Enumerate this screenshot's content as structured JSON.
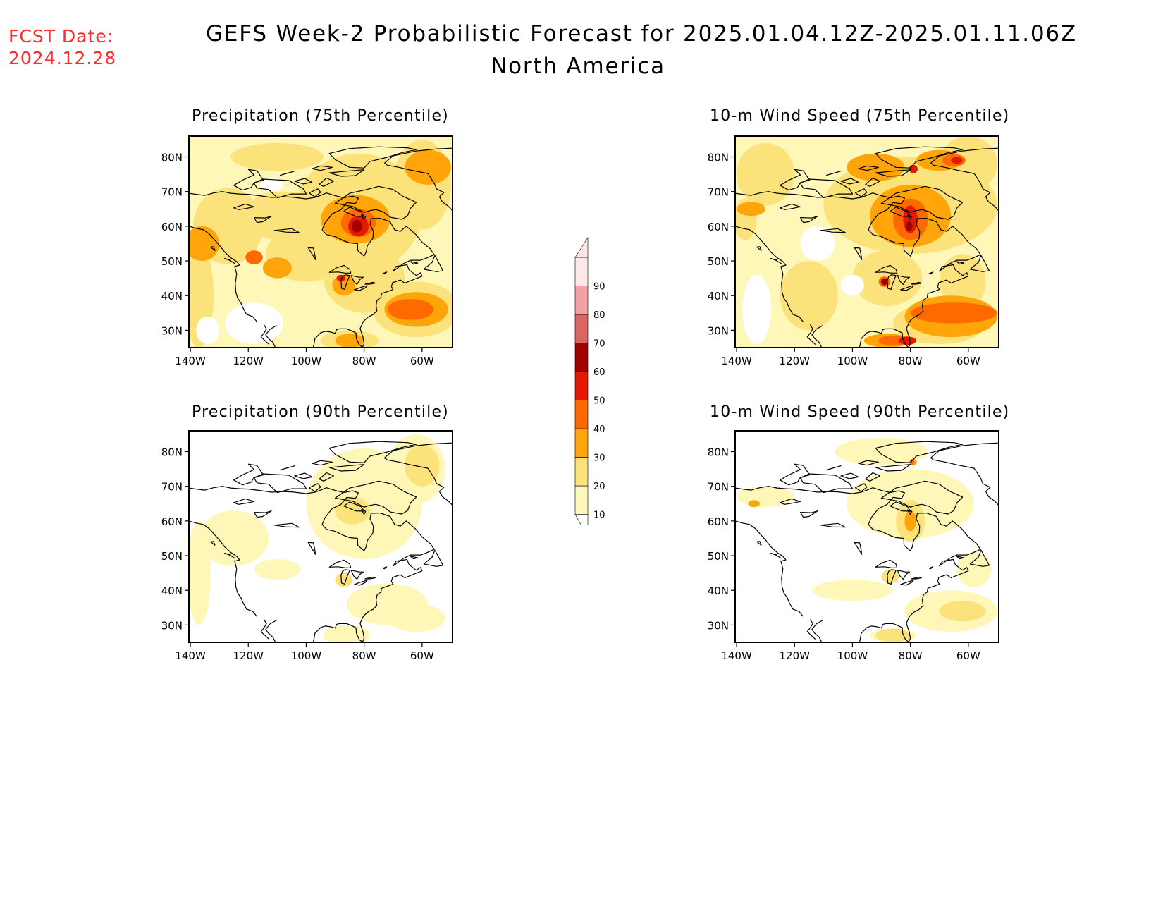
{
  "header": {
    "fcst_label": "FCST Date:",
    "fcst_date": "2024.12.28",
    "title": "GEFS Week-2 Probabilistic Forecast for 2025.01.04.12Z-2025.01.11.06Z",
    "subtitle": "North America"
  },
  "palette": {
    "c10": "#fff7b8",
    "c20": "#fce27a",
    "c30": "#ffa50a",
    "c40": "#ff6a00",
    "c50": "#e31a00",
    "c60": "#a00000",
    "c70": "#dc6464",
    "c80": "#f4a0a4",
    "c90": "#fde8e8"
  },
  "colorbar": {
    "levels": [
      "10",
      "20",
      "30",
      "40",
      "50",
      "60",
      "70",
      "80",
      "90"
    ]
  },
  "axes": {
    "lon_ticks": [
      "140W",
      "120W",
      "100W",
      "80W",
      "60W"
    ],
    "lat_ticks": [
      "80N",
      "70N",
      "60N",
      "50N",
      "40N",
      "30N"
    ]
  },
  "panels": [
    {
      "key": "p75",
      "title": "Precipitation (75th Percentile)"
    },
    {
      "key": "w75",
      "title": "10-m Wind Speed (75th Percentile)"
    },
    {
      "key": "p90",
      "title": "Precipitation (90th Percentile)"
    },
    {
      "key": "w90",
      "title": "10-m Wind Speed (90th Percentile)"
    }
  ]
}
